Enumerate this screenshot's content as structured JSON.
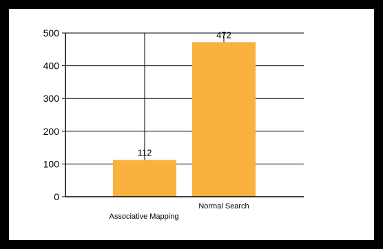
{
  "chart_data": {
    "type": "bar",
    "categories": [
      "Associative Mapping",
      "Normal Search"
    ],
    "values": [
      112,
      472
    ],
    "data_labels": [
      "112",
      "472"
    ],
    "y_ticks": [
      0,
      100,
      200,
      300,
      400,
      500
    ],
    "ylim": [
      0,
      500
    ],
    "grid": true,
    "bar_color": "#F9B140",
    "axis_color": "#000000",
    "frame_color": "#000000"
  }
}
